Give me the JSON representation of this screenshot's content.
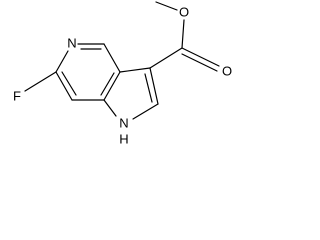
{
  "atoms": {
    "pyridine_n": "N",
    "fluorine": "F",
    "ester_o": "O",
    "carbonyl_o": "O",
    "pyrrole_n": "N",
    "pyrrole_h": "H"
  }
}
